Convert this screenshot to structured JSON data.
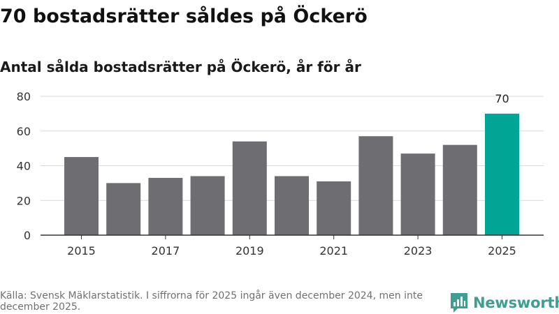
{
  "title": "70 bostadsrätter såldes på Öckerö",
  "subtitle": "Antal sålda bostadsrätter på Öckerö, år för år",
  "source": "Källa: Svensk Mäklarstatistik. I siffrorna för 2025 ingår även december 2024, men inte december 2025.",
  "brand": {
    "name": "Newsworthy",
    "icon": "newsworthy-logo-icon"
  },
  "colors": {
    "bar": "#6e6d72",
    "highlight": "#00a596",
    "grid": "#d9d9d9",
    "axis": "#333333",
    "brand": "#3f9e8f"
  },
  "chart_data": {
    "type": "bar",
    "title": "Antal sålda bostadsrätter på Öckerö, år för år",
    "categories": [
      "2015",
      "2016",
      "2017",
      "2018",
      "2019",
      "2020",
      "2021",
      "2022",
      "2023",
      "2024",
      "2025"
    ],
    "values": [
      45,
      30,
      33,
      34,
      54,
      34,
      31,
      57,
      47,
      52,
      70
    ],
    "highlight_index": 10,
    "data_labels": [
      {
        "index": 10,
        "text": "70"
      }
    ],
    "xticks": [
      "2015",
      "2017",
      "2019",
      "2021",
      "2023",
      "2025"
    ],
    "yticks": [
      0,
      20,
      40,
      60,
      80
    ],
    "ylim": [
      0,
      80
    ],
    "xlabel": "",
    "ylabel": "",
    "grid": true
  }
}
